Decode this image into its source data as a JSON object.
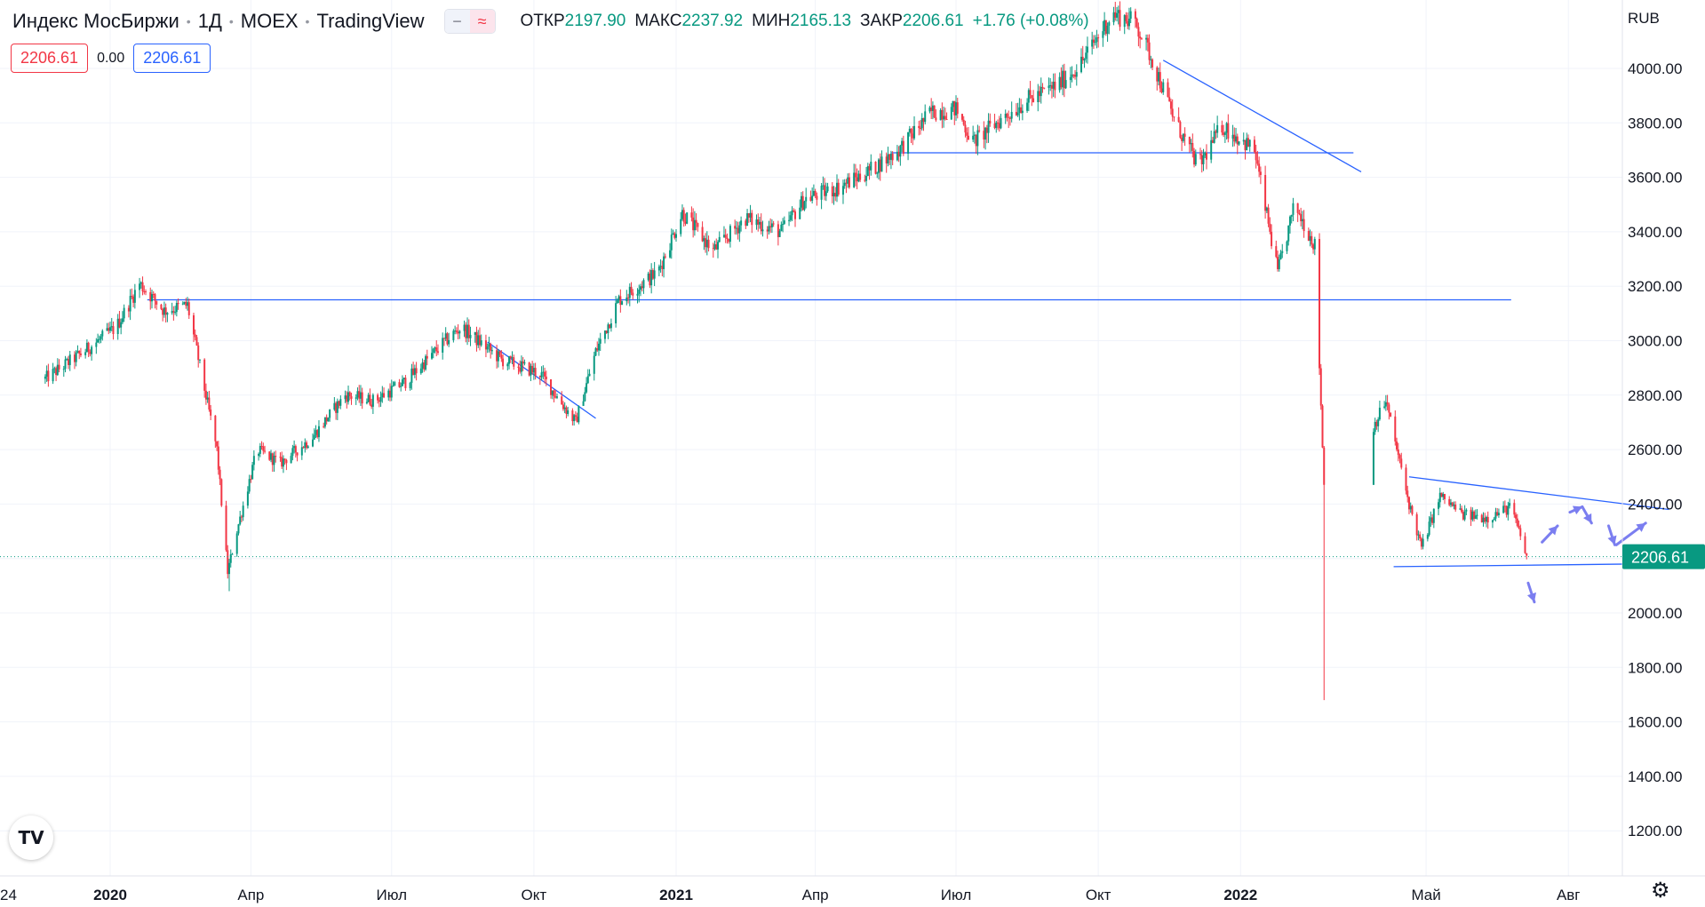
{
  "header": {
    "symbol": "Индекс МосБиржи",
    "interval": "1Д",
    "exchange": "MOEX",
    "source": "TradingView",
    "ohlc": {
      "open_label": "ОТКР",
      "open": "2197.90",
      "high_label": "МАКС",
      "high": "2237.92",
      "low_label": "МИН",
      "low": "2165.13",
      "close_label": "ЗАКР",
      "close": "2206.61",
      "change": "+1.76 (+0.08%)"
    },
    "bid": "2206.61",
    "spread": "0.00",
    "ask": "2206.61"
  },
  "colors": {
    "up": "#089981",
    "down": "#f23645",
    "trendline": "#2962ff",
    "arrows": "#7b7ef0",
    "last_price": "#089981"
  },
  "chart_data": {
    "type": "candlestick",
    "currency": "RUB",
    "ylim": [
      1100,
      4200
    ],
    "y_ticks": [
      1200,
      1400,
      1600,
      1800,
      2000,
      2200,
      2400,
      2600,
      2800,
      3000,
      3200,
      3400,
      3600,
      3800,
      4000
    ],
    "y_tick_labels": [
      "1200.00",
      "1400.00",
      "1600.00",
      "1800.00",
      "2000.00",
      "2200.00",
      "2400.00",
      "2600.00",
      "2800.00",
      "3000.00",
      "3200.00",
      "3400.00",
      "3600.00",
      "3800.00",
      "4000.00"
    ],
    "x_labels": [
      "2020",
      "Апр",
      "Июл",
      "Окт",
      "2021",
      "Апр",
      "Июл",
      "Окт",
      "2022",
      "Май",
      "Авг"
    ],
    "x_edge_label": "24",
    "last_price_label": "2206.61",
    "last_price": 2206.61,
    "price_path": [
      [
        "2019-11-20",
        2860
      ],
      [
        "2019-12-15",
        2960
      ],
      [
        "2020-01-05",
        3050
      ],
      [
        "2020-01-20",
        3210
      ],
      [
        "2020-02-05",
        3110
      ],
      [
        "2020-02-20",
        3130
      ],
      [
        "2020-03-01",
        2850
      ],
      [
        "2020-03-10",
        2600
      ],
      [
        "2020-03-17",
        2150
      ],
      [
        "2020-03-22",
        2280
      ],
      [
        "2020-04-05",
        2600
      ],
      [
        "2020-04-20",
        2550
      ],
      [
        "2020-05-10",
        2640
      ],
      [
        "2020-06-01",
        2800
      ],
      [
        "2020-06-20",
        2780
      ],
      [
        "2020-07-10",
        2850
      ],
      [
        "2020-08-05",
        3000
      ],
      [
        "2020-08-15",
        3050
      ],
      [
        "2020-09-10",
        2930
      ],
      [
        "2020-10-05",
        2880
      ],
      [
        "2020-10-28",
        2700
      ],
      [
        "2020-11-10",
        2960
      ],
      [
        "2020-11-25",
        3150
      ],
      [
        "2020-12-20",
        3250
      ],
      [
        "2021-01-05",
        3470
      ],
      [
        "2021-01-25",
        3330
      ],
      [
        "2021-02-15",
        3450
      ],
      [
        "2021-03-10",
        3400
      ],
      [
        "2021-03-25",
        3520
      ],
      [
        "2021-04-15",
        3560
      ],
      [
        "2021-05-05",
        3620
      ],
      [
        "2021-05-25",
        3700
      ],
      [
        "2021-06-15",
        3840
      ],
      [
        "2021-07-01",
        3850
      ],
      [
        "2021-07-12",
        3730
      ],
      [
        "2021-07-25",
        3790
      ],
      [
        "2021-08-15",
        3880
      ],
      [
        "2021-09-05",
        3940
      ],
      [
        "2021-09-20",
        4020
      ],
      [
        "2021-10-10",
        4200
      ],
      [
        "2021-10-25",
        4170
      ],
      [
        "2021-11-05",
        4030
      ],
      [
        "2021-11-20",
        3800
      ],
      [
        "2021-12-05",
        3640
      ],
      [
        "2021-12-20",
        3790
      ],
      [
        "2022-01-10",
        3700
      ],
      [
        "2022-01-25",
        3250
      ],
      [
        "2022-02-05",
        3500
      ],
      [
        "2022-02-18",
        3350
      ],
      [
        "2022-02-24",
        2470
      ],
      [
        "2022-03-25",
        2650
      ],
      [
        "2022-04-05",
        2780
      ],
      [
        "2022-04-20",
        2400
      ],
      [
        "2022-04-28",
        2240
      ],
      [
        "2022-05-10",
        2430
      ],
      [
        "2022-05-25",
        2360
      ],
      [
        "2022-06-10",
        2350
      ],
      [
        "2022-06-25",
        2390
      ],
      [
        "2022-07-05",
        2206.61
      ]
    ],
    "crash_low": [
      "2022-02-24",
      1680
    ],
    "covid_low": [
      "2020-03-18",
      2080
    ],
    "horizontal_levels": [
      {
        "from": "2020-01-25",
        "to": "2022-06-25",
        "value": 3150
      },
      {
        "from": "2021-05-20",
        "to": "2022-03-15",
        "value": 3690
      }
    ],
    "trendlines": [
      {
        "from": [
          "2020-09-01",
          2995
        ],
        "to": [
          "2020-11-10",
          2715
        ]
      },
      {
        "from": [
          "2021-11-12",
          4030
        ],
        "to": [
          "2022-03-20",
          3620
        ]
      },
      {
        "from": [
          "2022-04-20",
          2500
        ],
        "to": [
          "2022-10-05",
          2380
        ]
      },
      {
        "from": [
          "2022-04-10",
          2170
        ],
        "to": [
          "2022-09-15",
          2180
        ]
      }
    ],
    "scenario_arrows": [
      {
        "from": [
          "2022-07-15",
          2260
        ],
        "to": [
          "2022-07-25",
          2320
        ]
      },
      {
        "from": [
          "2022-08-02",
          2370
        ],
        "to": [
          "2022-08-10",
          2390
        ]
      },
      {
        "from": [
          "2022-08-10",
          2390
        ],
        "to": [
          "2022-08-16",
          2330
        ]
      },
      {
        "from": [
          "2022-08-27",
          2320
        ],
        "to": [
          "2022-08-31",
          2250
        ]
      },
      {
        "from": [
          "2022-09-01",
          2250
        ],
        "to": [
          "2022-09-20",
          2330
        ]
      },
      {
        "from": [
          "2022-07-06",
          2110
        ],
        "to": [
          "2022-07-10",
          2040
        ]
      }
    ]
  }
}
